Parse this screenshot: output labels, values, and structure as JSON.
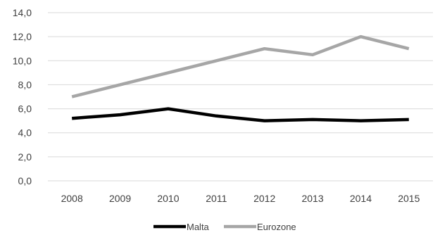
{
  "chart_data": {
    "type": "line",
    "title": "",
    "xlabel": "",
    "ylabel": "",
    "categories": [
      "2008",
      "2009",
      "2010",
      "2011",
      "2012",
      "2013",
      "2014",
      "2015"
    ],
    "ylim": [
      0,
      14
    ],
    "yticks": [
      "0,0",
      "2,0",
      "4,0",
      "6,0",
      "8,0",
      "10,0",
      "12,0",
      "14,0"
    ],
    "grid": true,
    "legend_position": "bottom",
    "series": [
      {
        "name": "Malta",
        "color": "#000000",
        "values": [
          5.2,
          5.5,
          6.0,
          5.4,
          5.0,
          5.1,
          5.0,
          5.1
        ]
      },
      {
        "name": "Eurozone",
        "color": "#a6a6a6",
        "values": [
          7.0,
          8.0,
          9.0,
          10.0,
          11.0,
          10.5,
          12.0,
          11.0
        ]
      }
    ]
  }
}
